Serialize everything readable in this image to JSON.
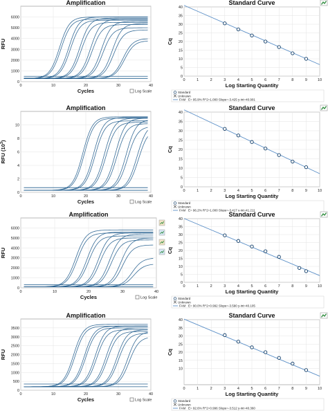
{
  "colors": {
    "curve": "#1f5b8c",
    "fit_line": "#5b8fc7",
    "marker": "#0d3a66",
    "border": "#9a9a9a",
    "grid": "#e3e3e3",
    "icon_green": "#2e8b3d"
  },
  "log_scale_label": "Log Scale",
  "chart_data": [
    {
      "type": "line",
      "title": "Amplification",
      "xlabel": "Cycles",
      "ylabel": "RFU",
      "xlim": [
        0,
        42
      ],
      "ylim": [
        0,
        7000
      ],
      "xticks": [
        "0",
        "10",
        "20",
        "30",
        "40"
      ],
      "yticks": [
        "0",
        "1000",
        "2000",
        "3000",
        "4000",
        "5000",
        "6000"
      ],
      "curve_ct": [
        12.5,
        13,
        15.5,
        16,
        19,
        19.5,
        22.5,
        23,
        26,
        26.5,
        29.5,
        30,
        33,
        33.5
      ],
      "curve_max": [
        6000,
        5800,
        6000,
        5700,
        5900,
        5500,
        5800,
        5300,
        5600,
        5000,
        5400,
        4800,
        4000,
        3800
      ],
      "baselines": [
        300,
        500
      ]
    },
    {
      "type": "scatter",
      "title": "Standard Curve",
      "xlabel": "Log Starting Quantity",
      "ylabel": "Cq",
      "xlim": [
        0,
        10
      ],
      "ylim": [
        0,
        40
      ],
      "xticks": [
        "0",
        "1",
        "2",
        "3",
        "4",
        "5",
        "6",
        "7",
        "8",
        "9",
        "10"
      ],
      "yticks": [
        "0",
        "5",
        "10",
        "15",
        "20",
        "25",
        "30",
        "35",
        "40"
      ],
      "x": [
        3,
        4,
        5,
        6,
        7,
        8,
        9
      ],
      "y": [
        30.5,
        27,
        23.5,
        20,
        16.8,
        13.2,
        10
      ],
      "fit": {
        "slope": -3.425,
        "intercept": 40.901
      },
      "legend": {
        "standard": "Standard",
        "unknown": "Unknown",
        "fam_label": "FAM",
        "equation": "E= 95.9% R^2=1.000 Slope=-3.425 y-int=40.901"
      }
    },
    {
      "type": "line",
      "title": "Amplification",
      "xlabel": "Cycles",
      "ylabel": "RFU (10^3)",
      "xlim": [
        0,
        42
      ],
      "ylim": [
        0,
        12
      ],
      "xticks": [
        "0",
        "10",
        "20",
        "30",
        "40"
      ],
      "yticks": [
        "0",
        "2",
        "4",
        "6",
        "8",
        "10"
      ],
      "curve_ct": [
        20,
        20.5,
        23.5,
        24,
        27,
        27.5,
        30.5,
        31,
        34,
        34.5,
        37.5,
        38
      ],
      "curve_max": [
        11.2,
        11,
        11.1,
        10.6,
        11,
        10.4,
        11,
        10.2,
        10.8,
        9.8,
        10.2,
        9.5
      ],
      "baselines": [
        0.3,
        0.7
      ]
    },
    {
      "type": "scatter",
      "title": "Standard Curve",
      "xlabel": "Log Starting Quantity",
      "ylabel": "Cq",
      "xlim": [
        0,
        10
      ],
      "ylim": [
        0,
        40
      ],
      "xticks": [
        "0",
        "1",
        "2",
        "3",
        "4",
        "5",
        "6",
        "7",
        "8",
        "9",
        "10"
      ],
      "yticks": [
        "0",
        "5",
        "10",
        "15",
        "20",
        "25",
        "30",
        "35",
        "40"
      ],
      "x": [
        3,
        4,
        5,
        6,
        7,
        8,
        9
      ],
      "y": [
        31,
        27.5,
        24,
        20.5,
        17,
        13.5,
        10.5
      ],
      "fit": {
        "slope": -3.417,
        "intercept": 41.211
      },
      "legend": {
        "standard": "Standard",
        "unknown": "Unknown",
        "fam_label": "FAM",
        "equation": "E= 96.2% R^2=1.000 Slope=-3.417 y-int=41.211"
      }
    },
    {
      "type": "line",
      "title": "Amplification",
      "xlabel": "Cycles",
      "ylabel": "RFU",
      "xlim": [
        0,
        42
      ],
      "ylim": [
        0,
        7000
      ],
      "xticks": [
        "0",
        "10",
        "20",
        "30",
        "40"
      ],
      "yticks": [
        "0",
        "1000",
        "2000",
        "3000",
        "4000",
        "5000",
        "6000"
      ],
      "curve_ct": [
        17,
        17.5,
        20.5,
        21,
        24,
        24.5,
        27.5,
        28,
        31,
        31.5,
        34.5,
        35
      ],
      "curve_max": [
        5800,
        5500,
        5600,
        5200,
        5500,
        5000,
        5400,
        4800,
        5000,
        4300,
        3000,
        2400
      ],
      "baselines": [
        100,
        300
      ]
    },
    {
      "type": "scatter",
      "title": "Standard Curve",
      "xlabel": "Log Starting Quantity",
      "ylabel": "Cq",
      "xlim": [
        0,
        10
      ],
      "ylim": [
        0,
        40
      ],
      "xticks": [
        "0",
        "1",
        "2",
        "3",
        "4",
        "5",
        "6",
        "7",
        "8",
        "9",
        "10"
      ],
      "yticks": [
        "0",
        "5",
        "10",
        "15",
        "20",
        "25",
        "30",
        "35",
        "40"
      ],
      "x": [
        3,
        4,
        5,
        6,
        7,
        8.5,
        9
      ],
      "y": [
        29.5,
        26,
        22.5,
        19.5,
        16,
        9,
        7
      ],
      "fit": {
        "slope": -3.59,
        "intercept": 40.105
      },
      "legend": {
        "standard": "Standard",
        "unknown": "Unknown",
        "fam_label": "FAM",
        "equation": "E= 90.0% R^2=0.992 Slope=-3.590 y-int=40.105"
      }
    },
    {
      "type": "line",
      "title": "Amplification",
      "xlabel": "Cycles",
      "ylabel": "RFU",
      "xlim": [
        0,
        42
      ],
      "ylim": [
        0,
        4000
      ],
      "xticks": [
        "0",
        "10",
        "20",
        "30",
        "40"
      ],
      "yticks": [
        "0",
        "500",
        "1000",
        "1500",
        "2000",
        "2500",
        "3000",
        "3500"
      ],
      "curve_ct": [
        17,
        17.5,
        20.5,
        21,
        24,
        24.5,
        27.5,
        28,
        31,
        31.5,
        34.5,
        35
      ],
      "curve_max": [
        3700,
        3600,
        3600,
        3500,
        3600,
        3400,
        3500,
        3300,
        3400,
        3200,
        3300,
        3000
      ],
      "baselines": [
        200,
        350
      ]
    },
    {
      "type": "scatter",
      "title": "Standard Curve",
      "xlabel": "Log Starting Quantity",
      "ylabel": "Cq",
      "xlim": [
        0,
        10
      ],
      "ylim": [
        0,
        40
      ],
      "xticks": [
        "0",
        "1",
        "2",
        "3",
        "4",
        "5",
        "6",
        "7",
        "8",
        "9",
        "10"
      ],
      "yticks": [
        "10",
        "15",
        "20",
        "25",
        "30",
        "35",
        "40"
      ],
      "x": [
        3,
        4,
        5,
        6,
        7,
        8,
        9
      ],
      "y": [
        30.5,
        26.5,
        23,
        20,
        16.5,
        13,
        9
      ],
      "fit": {
        "slope": -3.512,
        "intercept": 40.36
      },
      "legend": {
        "standard": "Standard",
        "unknown": "Unknown",
        "fam_label": "FAM",
        "equation": "E= 92.6% R^2=0.996 Slope=-3.512 y-int=40.360"
      }
    }
  ]
}
